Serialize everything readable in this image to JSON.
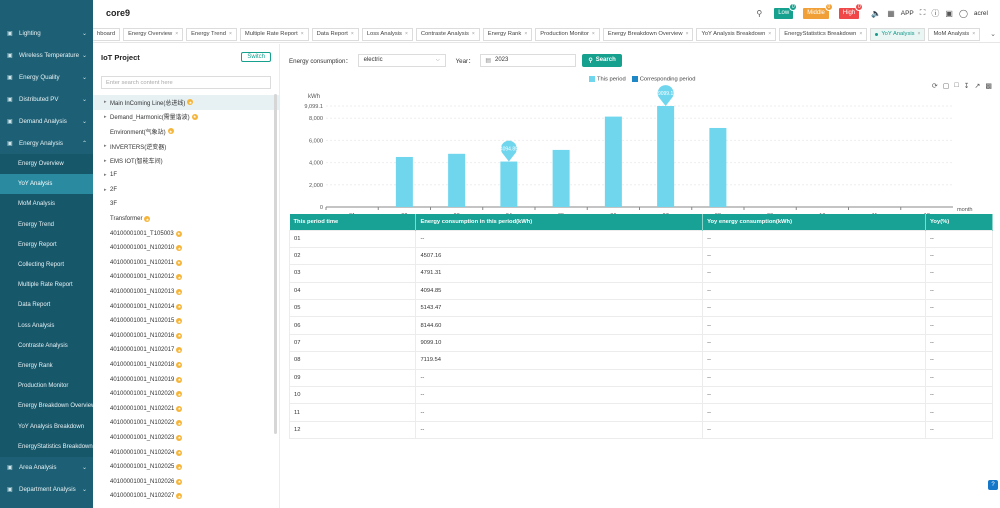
{
  "header": {
    "title": "core9",
    "alarms": [
      {
        "label": "Low",
        "count": "0",
        "color": "#16a08e"
      },
      {
        "label": "Middle",
        "count": "0",
        "color": "#f0a036"
      },
      {
        "label": "High",
        "count": "0",
        "color": "#f04848"
      }
    ],
    "app_label": "APP",
    "user": "acrel"
  },
  "sidebar": {
    "items": [
      {
        "label": "Lighting",
        "icon": "lightbulb-icon"
      },
      {
        "label": "Wireless Temperature",
        "icon": "thermometer-icon"
      },
      {
        "label": "Energy Quality",
        "icon": "quality-icon"
      },
      {
        "label": "Distributed PV",
        "icon": "solar-icon"
      },
      {
        "label": "Demand Analysis",
        "icon": "demand-icon"
      },
      {
        "label": "Energy Analysis",
        "icon": "analysis-icon"
      }
    ],
    "subitems": [
      "Energy Overview",
      "YoY Analysis",
      "MoM Analysis",
      "Energy Trend",
      "Energy Report",
      "Collecting Report",
      "Multiple Rate Report",
      "Data Report",
      "Loss Analysis",
      "Contraste Analysis",
      "Energy Rank",
      "Production Monitor",
      "Energy Breakdown Overview",
      "YoY Analysis Breakdown",
      "EnergyStatistics Breakdown"
    ],
    "active_sub": "YoY Analysis",
    "bottom": [
      {
        "label": "Area Analysis",
        "icon": "area-icon"
      },
      {
        "label": "Department Analysis",
        "icon": "department-icon"
      }
    ]
  },
  "tabs": [
    "hboard",
    "Energy Overview",
    "Energy Trend",
    "Multiple Rate Report",
    "Data Report",
    "Loss Analysis",
    "Contraste Analysis",
    "Energy Rank",
    "Production Monitor",
    "Energy Breakdown Overview",
    "YoY Analysis Breakdown",
    "EnergyStatistics Breakdown",
    "YoY Analysis",
    "MoM Analysis"
  ],
  "active_tab": "YoY Analysis",
  "left_panel": {
    "title": "IoT Project",
    "switch_label": "Switch",
    "search_placeholder": "Enter search content here",
    "tree": [
      {
        "label": "Main InComing Line(总进线)",
        "arrow": true,
        "star": true,
        "selected": true
      },
      {
        "label": "Demand_Harmonic(需量谐波)",
        "arrow": true,
        "star": true
      },
      {
        "label": "Environment(气象站)",
        "arrow": false,
        "star": true
      },
      {
        "label": "INVERTERS(逆变器)",
        "arrow": true,
        "star": false
      },
      {
        "label": "EMS IOT(智能车间)",
        "arrow": true,
        "star": false
      },
      {
        "label": "1F",
        "arrow": true,
        "star": false
      },
      {
        "label": "2F",
        "arrow": true,
        "star": false
      },
      {
        "label": "3F",
        "arrow": false,
        "star": false
      },
      {
        "label": "Transformer",
        "arrow": false,
        "star": true
      },
      {
        "label": "40100001001_T105003",
        "arrow": false,
        "star": true
      },
      {
        "label": "40100001001_N102010",
        "arrow": false,
        "star": true
      },
      {
        "label": "40100001001_N102011",
        "arrow": false,
        "star": true
      },
      {
        "label": "40100001001_N102012",
        "arrow": false,
        "star": true
      },
      {
        "label": "40100001001_N102013",
        "arrow": false,
        "star": true
      },
      {
        "label": "40100001001_N102014",
        "arrow": false,
        "star": true
      },
      {
        "label": "40100001001_N102015",
        "arrow": false,
        "star": true
      },
      {
        "label": "40100001001_N102016",
        "arrow": false,
        "star": true
      },
      {
        "label": "40100001001_N102017",
        "arrow": false,
        "star": true
      },
      {
        "label": "40100001001_N102018",
        "arrow": false,
        "star": true
      },
      {
        "label": "40100001001_N102019",
        "arrow": false,
        "star": true
      },
      {
        "label": "40100001001_N102020",
        "arrow": false,
        "star": true
      },
      {
        "label": "40100001001_N102021",
        "arrow": false,
        "star": true
      },
      {
        "label": "40100001001_N102022",
        "arrow": false,
        "star": true
      },
      {
        "label": "40100001001_N102023",
        "arrow": false,
        "star": true
      },
      {
        "label": "40100001001_N102024",
        "arrow": false,
        "star": true
      },
      {
        "label": "40100001001_N102025",
        "arrow": false,
        "star": true
      },
      {
        "label": "40100001001_N102026",
        "arrow": false,
        "star": true
      },
      {
        "label": "40100001001_N102027",
        "arrow": false,
        "star": true
      }
    ]
  },
  "filter": {
    "consumption_label": "Energy consumption：",
    "consumption_value": "electric",
    "year_label": "Year：",
    "year_value": "2023",
    "search_label": "Search"
  },
  "chart_data": {
    "type": "bar",
    "categories": [
      "01",
      "02",
      "03",
      "04",
      "05",
      "06",
      "07",
      "08",
      "09",
      "10",
      "11",
      "12"
    ],
    "series": [
      {
        "name": "This period",
        "color": "#6fd6ee",
        "values": [
          null,
          4507.16,
          4791.31,
          4094.85,
          5143.47,
          8144.6,
          9099.1,
          7119.54,
          null,
          null,
          null,
          null
        ]
      },
      {
        "name": "Corresponding period",
        "color": "#1e88c7",
        "values": [
          null,
          null,
          null,
          null,
          null,
          null,
          null,
          null,
          null,
          null,
          null,
          null
        ]
      }
    ],
    "ylabel": "kWh",
    "xlabel": "month",
    "ylim": [
      0,
      9099.1
    ],
    "yticks": [
      "0",
      "2,000",
      "4,000",
      "6,000",
      "8,000",
      "9,099.1"
    ],
    "pins": [
      {
        "category": "04",
        "label": "4094.85"
      },
      {
        "category": "07",
        "label": "9099.1"
      }
    ],
    "legend_position": "top-center"
  },
  "table": {
    "columns": [
      "This period time",
      "Energy consumption in this period(kWh)",
      "Yoy energy consumption(kWh)",
      "Yoy(%)"
    ],
    "rows": [
      [
        "01",
        "--",
        "--",
        "--"
      ],
      [
        "02",
        "4507.16",
        "--",
        "--"
      ],
      [
        "03",
        "4791.31",
        "--",
        "--"
      ],
      [
        "04",
        "4094.85",
        "--",
        "--"
      ],
      [
        "05",
        "5143.47",
        "--",
        "--"
      ],
      [
        "06",
        "8144.60",
        "--",
        "--"
      ],
      [
        "07",
        "9099.10",
        "--",
        "--"
      ],
      [
        "08",
        "7119.54",
        "--",
        "--"
      ],
      [
        "09",
        "--",
        "--",
        "--"
      ],
      [
        "10",
        "--",
        "--",
        "--"
      ],
      [
        "11",
        "--",
        "--",
        "--"
      ],
      [
        "12",
        "--",
        "--",
        "--"
      ]
    ]
  }
}
